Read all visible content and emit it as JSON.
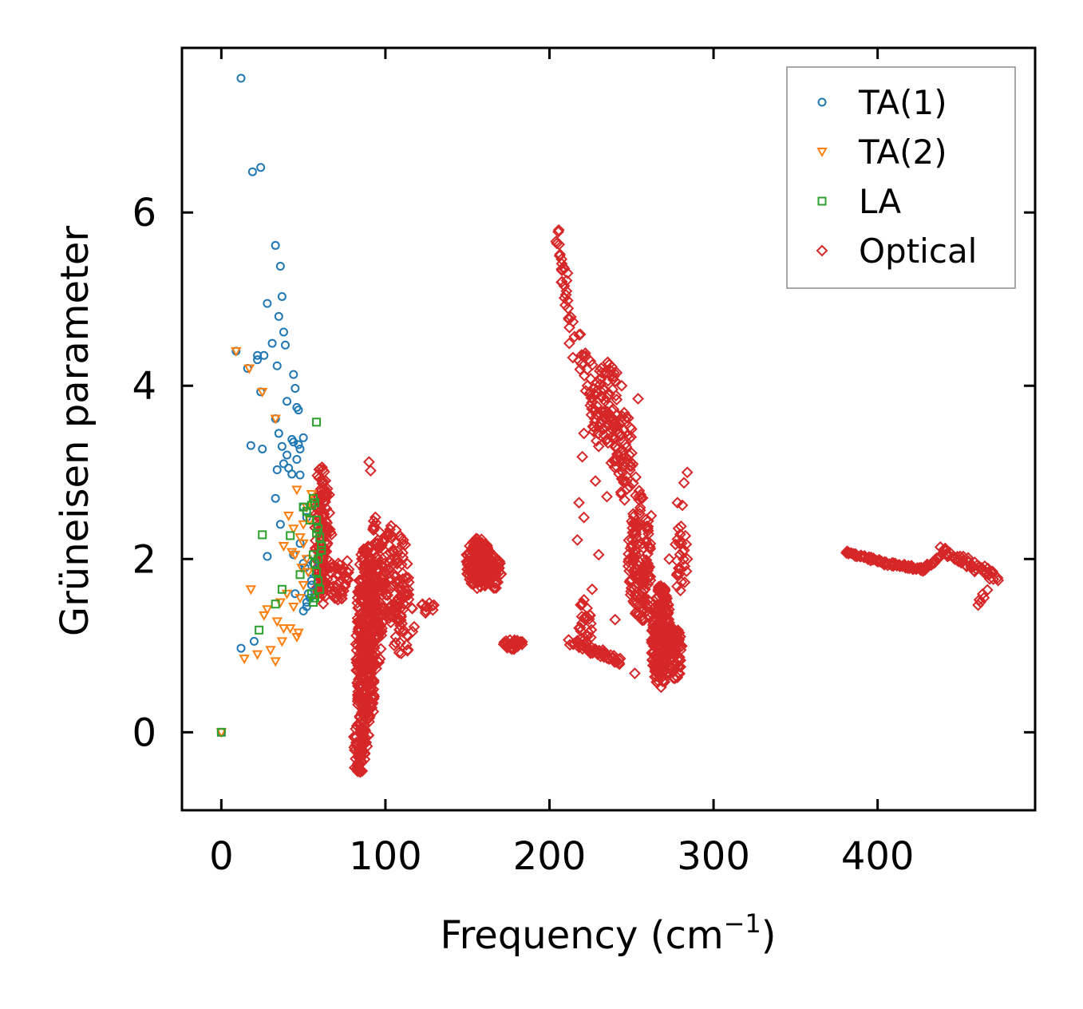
{
  "chart_data": {
    "type": "scatter",
    "title": "",
    "xlabel": "Frequency (cm",
    "xlabel_sup": "−1",
    "xlabel_end": ")",
    "ylabel": "Grüneisen parameter",
    "xlim": [
      -24,
      496
    ],
    "ylim": [
      -0.9,
      7.9
    ],
    "xticks": [
      0,
      100,
      200,
      300,
      400
    ],
    "yticks": [
      0,
      2,
      4,
      6
    ],
    "legend_position": "top-right",
    "series": [
      {
        "name": "TA(1)",
        "marker": "circle",
        "color": "#1f77b4",
        "x": [
          12,
          19,
          24,
          33,
          36,
          37,
          28,
          35,
          38,
          39,
          26,
          31,
          34,
          22,
          24,
          40,
          44,
          45,
          46,
          47,
          18,
          25,
          33,
          35,
          43,
          48,
          37,
          40,
          44,
          47,
          50,
          38,
          41,
          43,
          46,
          48,
          50,
          52,
          36,
          33,
          34,
          28,
          44,
          48,
          50,
          52,
          50,
          12,
          0,
          20,
          22,
          9,
          16,
          45,
          51,
          55,
          53,
          52,
          54,
          56,
          53,
          55,
          52,
          54
        ],
        "y": [
          7.55,
          6.47,
          6.52,
          5.62,
          5.38,
          5.03,
          4.95,
          4.8,
          4.62,
          4.47,
          4.35,
          4.49,
          4.23,
          4.3,
          3.93,
          3.82,
          4.13,
          3.97,
          3.75,
          3.72,
          3.31,
          3.27,
          3.62,
          3.45,
          3.38,
          3.27,
          3.3,
          3.2,
          3.35,
          3.32,
          3.4,
          3.1,
          3.05,
          2.98,
          3.15,
          2.97,
          2.6,
          2.55,
          2.4,
          2.7,
          3.03,
          2.03,
          2.05,
          2.18,
          1.95,
          2.48,
          1.4,
          0.97,
          0.0,
          1.05,
          4.35,
          4.4,
          4.2,
          1.6,
          1.9,
          1.75,
          1.6,
          1.5,
          1.85,
          1.95,
          2.0,
          1.7,
          1.45,
          1.55
        ]
      },
      {
        "name": "TA(2)",
        "marker": "triangle-down",
        "color": "#ff7f0e",
        "x": [
          0,
          9,
          17,
          25,
          33,
          18,
          28,
          36,
          42,
          22,
          30,
          38,
          46,
          26,
          34,
          40,
          48,
          50,
          52,
          55,
          46,
          41,
          44,
          48,
          50,
          52,
          54,
          49,
          53,
          45,
          38,
          43,
          50,
          37,
          47,
          44,
          14,
          33
        ],
        "y": [
          0.0,
          4.4,
          4.2,
          3.93,
          3.62,
          1.65,
          1.42,
          1.5,
          1.2,
          0.9,
          0.95,
          1.2,
          1.1,
          1.35,
          1.28,
          1.6,
          1.55,
          1.7,
          2.0,
          2.75,
          2.8,
          2.5,
          2.35,
          2.25,
          2.18,
          2.6,
          2.45,
          1.9,
          1.85,
          2.05,
          2.15,
          2.08,
          2.4,
          1.05,
          1.15,
          1.45,
          0.85,
          0.82
        ]
      },
      {
        "name": "LA",
        "marker": "square",
        "color": "#2ca02c",
        "x": [
          0,
          23,
          25,
          33,
          37,
          42,
          48,
          52,
          58,
          55,
          56,
          57,
          58,
          59,
          60,
          61,
          56,
          57,
          58,
          59,
          60,
          61,
          58,
          59,
          57,
          56,
          55,
          54,
          50
        ],
        "y": [
          0.0,
          1.18,
          2.28,
          1.48,
          1.65,
          2.27,
          1.82,
          2.55,
          3.58,
          2.62,
          2.7,
          2.65,
          2.45,
          2.35,
          2.25,
          2.15,
          2.05,
          1.95,
          1.85,
          1.75,
          1.65,
          2.1,
          2.3,
          2.0,
          1.55,
          1.5,
          1.6,
          2.45,
          2.6
        ]
      },
      {
        "name": "Optical",
        "marker": "diamond",
        "color": "#d62728",
        "clusters": [
          {
            "cx": 61,
            "cy": 2.3,
            "rx": 4,
            "ry": 0.85,
            "n": 90
          },
          {
            "cx": 64,
            "cy": 2.2,
            "rx": 4,
            "ry": 0.65,
            "n": 50
          },
          {
            "cx": 72,
            "cy": 1.8,
            "rx": 6,
            "ry": 0.3,
            "n": 40
          },
          {
            "cx": 88,
            "cy": 1.0,
            "rx": 6,
            "ry": 1.2,
            "n": 350
          },
          {
            "cx": 94,
            "cy": 1.6,
            "rx": 5,
            "ry": 0.9,
            "n": 120
          },
          {
            "cx": 84,
            "cy": -0.2,
            "rx": 4,
            "ry": 0.3,
            "n": 50
          },
          {
            "cx": 105,
            "cy": 1.8,
            "rx": 10,
            "ry": 0.6,
            "n": 90
          },
          {
            "cx": 110,
            "cy": 1.3,
            "rx": 8,
            "ry": 0.4,
            "n": 40
          },
          {
            "cx": 125,
            "cy": 1.45,
            "rx": 5,
            "ry": 0.08,
            "n": 10
          },
          {
            "cx": 157,
            "cy": 1.95,
            "rx": 8,
            "ry": 0.3,
            "n": 160
          },
          {
            "cx": 166,
            "cy": 1.85,
            "rx": 5,
            "ry": 0.2,
            "n": 50
          },
          {
            "cx": 178,
            "cy": 1.02,
            "rx": 6,
            "ry": 0.06,
            "n": 30
          },
          {
            "cx": 233,
            "cy": 3.8,
            "rx": 9,
            "ry": 0.5,
            "n": 70
          },
          {
            "cx": 245,
            "cy": 3.2,
            "rx": 6,
            "ry": 0.5,
            "n": 45
          },
          {
            "cx": 255,
            "cy": 2.0,
            "rx": 7,
            "ry": 0.8,
            "n": 140
          },
          {
            "cx": 268,
            "cy": 1.1,
            "rx": 6,
            "ry": 0.6,
            "n": 220
          },
          {
            "cx": 277,
            "cy": 0.9,
            "rx": 4,
            "ry": 0.3,
            "n": 60
          },
          {
            "cx": 280,
            "cy": 2.0,
            "rx": 4,
            "ry": 0.4,
            "n": 25
          },
          {
            "cx": 222,
            "cy": 1.25,
            "rx": 4,
            "ry": 0.3,
            "n": 25
          }
        ],
        "segments": [
          {
            "x0": 204,
            "y0": 5.8,
            "x1": 213,
            "y1": 4.7,
            "n": 25,
            "jx": 1.5,
            "jy": 0.06
          },
          {
            "x0": 213,
            "y0": 4.6,
            "x1": 250,
            "y1": 2.8,
            "n": 60,
            "jx": 5,
            "jy": 0.18
          },
          {
            "x0": 213,
            "y0": 1.05,
            "x1": 243,
            "y1": 0.82,
            "n": 55,
            "jx": 1.5,
            "jy": 0.04
          },
          {
            "x0": 380,
            "y0": 2.08,
            "x1": 405,
            "y1": 1.95,
            "n": 40,
            "jx": 1,
            "jy": 0.02
          },
          {
            "x0": 405,
            "y0": 1.95,
            "x1": 428,
            "y1": 1.88,
            "n": 40,
            "jx": 1,
            "jy": 0.02
          },
          {
            "x0": 428,
            "y0": 1.88,
            "x1": 440,
            "y1": 2.05,
            "n": 20,
            "jx": 1,
            "jy": 0.02
          },
          {
            "x0": 440,
            "y0": 2.1,
            "x1": 472,
            "y1": 1.8,
            "n": 55,
            "jx": 2,
            "jy": 0.05
          },
          {
            "x0": 461,
            "y0": 1.45,
            "x1": 466,
            "y1": 1.65,
            "n": 6,
            "jx": 1,
            "jy": 0.02
          }
        ],
        "x": [
          90,
          91,
          209,
          211,
          218,
          221,
          217,
          226,
          240,
          244,
          238,
          232,
          220,
          250,
          254,
          262,
          273,
          284,
          281,
          278,
          284,
          282,
          230,
          235,
          252,
          243,
          210,
          221,
          219,
          230,
          228,
          241,
          224
        ],
        "y": [
          3.12,
          3.02,
          5.35,
          5.3,
          2.65,
          2.48,
          2.22,
          1.65,
          1.3,
          4.0,
          4.22,
          3.7,
          3.18,
          3.5,
          3.85,
          2.5,
          2.0,
          3.0,
          2.62,
          2.65,
          2.0,
          2.88,
          2.05,
          2.72,
          0.68,
          3.55,
          5.05,
          3.45,
          1.47,
          3.3,
          2.9,
          4.15,
          1.15
        ]
      }
    ]
  }
}
